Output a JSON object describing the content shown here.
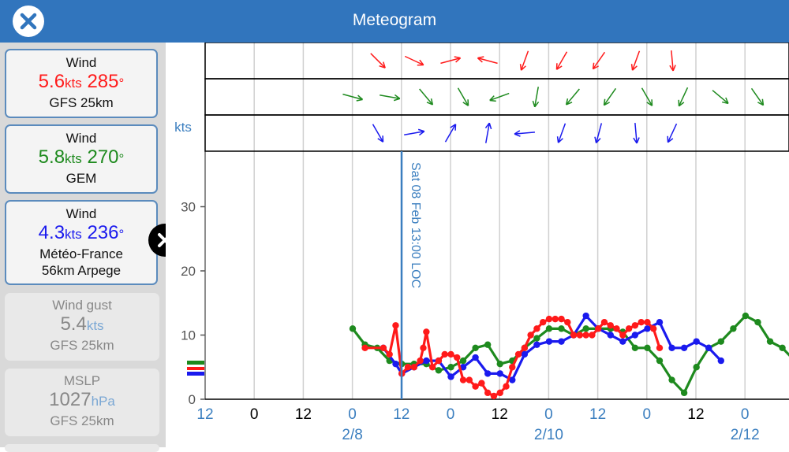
{
  "header": {
    "title": "Meteogram",
    "close_icon": "close-icon"
  },
  "sidebar": {
    "cards": [
      {
        "label": "Wind",
        "speed": "5.6",
        "speed_unit": "kts",
        "direction": "285",
        "deg": "°",
        "source": "GFS 25km",
        "color": "#ff1a1a"
      },
      {
        "label": "Wind",
        "speed": "5.8",
        "speed_unit": "kts",
        "direction": "270",
        "deg": "°",
        "source": "GEM",
        "color": "#1e8a1e"
      },
      {
        "label": "Wind",
        "speed": "4.3",
        "speed_unit": "kts",
        "direction": "236",
        "deg": "°",
        "source_line1": "Météo-France",
        "source_line2": "56km Arpege",
        "color": "#1a1aee"
      },
      {
        "label": "Wind gust",
        "value": "5.4",
        "unit": "kts",
        "source": "GFS 25km"
      },
      {
        "label": "MSLP",
        "value": "1027",
        "unit": "hPa",
        "source": "GFS 25km"
      }
    ],
    "remove_icon": "close-icon"
  },
  "chart_data": {
    "type": "line",
    "ylabel": "kts",
    "ylim": [
      0,
      35
    ],
    "yticks": [
      0,
      10,
      20,
      30
    ],
    "x_labels": [
      "12",
      "0",
      "12",
      "0",
      "12",
      "0",
      "12",
      "0",
      "12",
      "0",
      "12",
      "0"
    ],
    "date_labels": [
      "2/8",
      "2/10",
      "2/12"
    ],
    "cursor_label": "Sat 08 Feb 13:00 LOC",
    "colors": {
      "gfs": "#ff1a1a",
      "gem": "#1e8a1e",
      "arpege": "#1a1aee",
      "accent": "#3a7ebf"
    },
    "series": [
      {
        "values": [
          [
            2,
            8
          ],
          [
            5,
            8
          ],
          [
            6,
            7
          ],
          [
            7,
            11.5
          ],
          [
            8,
            4
          ],
          [
            9,
            5
          ],
          [
            10,
            5
          ],
          [
            11,
            6
          ],
          [
            11.5,
            8
          ],
          [
            12,
            10.5
          ],
          [
            13,
            5
          ],
          [
            14,
            6
          ],
          [
            15,
            7
          ],
          [
            16,
            7
          ],
          [
            17,
            6.5
          ],
          [
            18,
            3
          ],
          [
            19,
            3
          ],
          [
            20,
            2
          ],
          [
            21,
            2.5
          ],
          [
            22,
            1
          ],
          [
            23,
            0.5
          ],
          [
            24,
            1
          ],
          [
            25,
            2
          ],
          [
            26,
            5
          ],
          [
            27,
            7
          ],
          [
            28,
            8
          ],
          [
            29,
            10
          ],
          [
            30,
            11
          ],
          [
            31,
            12
          ],
          [
            32,
            12.5
          ],
          [
            33,
            12.5
          ],
          [
            34,
            12.5
          ],
          [
            35,
            12
          ],
          [
            36,
            10
          ],
          [
            37,
            10
          ],
          [
            38,
            10
          ],
          [
            39,
            10
          ],
          [
            40,
            11
          ],
          [
            41,
            12
          ],
          [
            42,
            11.5
          ],
          [
            43,
            11
          ],
          [
            44,
            10
          ],
          [
            45,
            11
          ],
          [
            46,
            11.5
          ],
          [
            47,
            12
          ],
          [
            48,
            12
          ],
          [
            49,
            11
          ],
          [
            50,
            8
          ]
        ]
      },
      {
        "values": [
          [
            0,
            11
          ],
          [
            2,
            8.5
          ],
          [
            4,
            8
          ],
          [
            6,
            6
          ],
          [
            8,
            5.5
          ],
          [
            10,
            5.5
          ],
          [
            12,
            5.5
          ],
          [
            14,
            4.5
          ],
          [
            16,
            5
          ],
          [
            18,
            6
          ],
          [
            20,
            8
          ],
          [
            22,
            8.5
          ],
          [
            24,
            5.5
          ],
          [
            26,
            6
          ],
          [
            28,
            8
          ],
          [
            30,
            9.5
          ],
          [
            32,
            11
          ],
          [
            34,
            11
          ],
          [
            36,
            10
          ],
          [
            38,
            11
          ],
          [
            40,
            11
          ],
          [
            42,
            11
          ],
          [
            44,
            10.5
          ],
          [
            46,
            8
          ],
          [
            48,
            8
          ],
          [
            50,
            6
          ],
          [
            52,
            3
          ],
          [
            54,
            1
          ],
          [
            56,
            5
          ],
          [
            58,
            8
          ],
          [
            60,
            9
          ],
          [
            62,
            11
          ],
          [
            64,
            13
          ],
          [
            66,
            12
          ],
          [
            68,
            9
          ],
          [
            70,
            8
          ],
          [
            72,
            6
          ],
          [
            74,
            5
          ]
        ]
      },
      {
        "values": [
          [
            5,
            8
          ],
          [
            7,
            5.5
          ],
          [
            8,
            4
          ],
          [
            10,
            5
          ],
          [
            12,
            6
          ],
          [
            14,
            6
          ],
          [
            16,
            3.5
          ],
          [
            18,
            5
          ],
          [
            20,
            6.5
          ],
          [
            22,
            4
          ],
          [
            24,
            4
          ],
          [
            26,
            3
          ],
          [
            28,
            7
          ],
          [
            30,
            8.5
          ],
          [
            32,
            9
          ],
          [
            34,
            9
          ],
          [
            36,
            10
          ],
          [
            38,
            13
          ],
          [
            40,
            11
          ],
          [
            42,
            10
          ],
          [
            44,
            9
          ],
          [
            46,
            10
          ],
          [
            48,
            11
          ],
          [
            50,
            12
          ],
          [
            52,
            8
          ],
          [
            54,
            8
          ],
          [
            56,
            9
          ],
          [
            58,
            8
          ],
          [
            60,
            6
          ]
        ]
      }
    ]
  }
}
